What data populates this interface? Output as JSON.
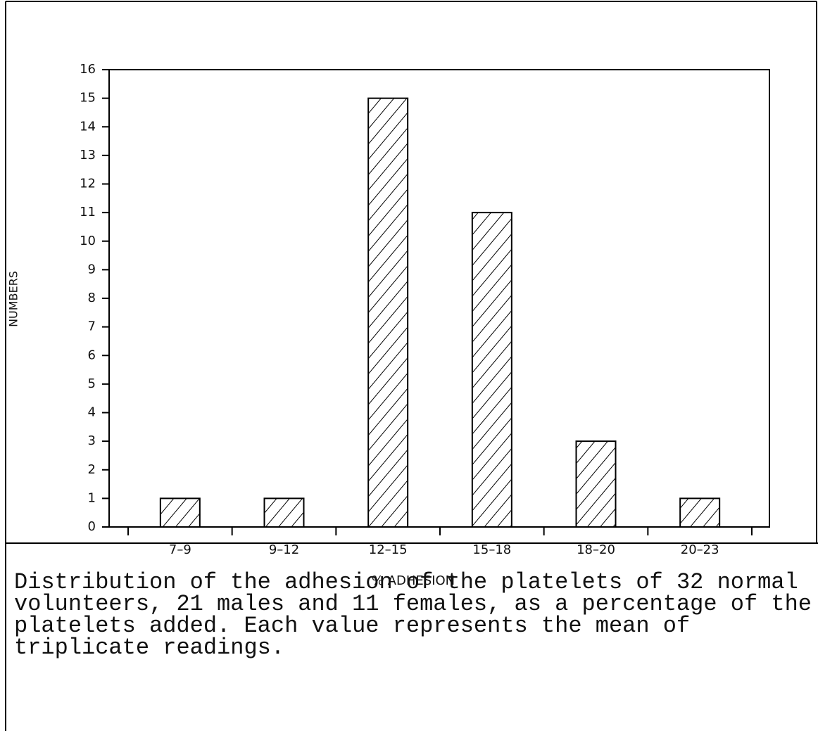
{
  "chart_data": {
    "type": "bar",
    "categories": [
      "7–9",
      "9–12",
      "12–15",
      "15–18",
      "18–20",
      "20–23"
    ],
    "values": [
      1,
      1,
      15,
      11,
      3,
      1
    ],
    "color": "#000000",
    "hatch": true,
    "ylim": [
      0,
      16
    ],
    "yticks": [
      0,
      1,
      2,
      3,
      4,
      5,
      6,
      7,
      8,
      9,
      10,
      11,
      12,
      13,
      14,
      15,
      16
    ],
    "x_label": "% ADHESION",
    "y_label": "NUMBERS",
    "grid": false
  },
  "caption": "Distribution of the adhesion of the platelets of 32 normal volunteers, 21 males and 11 females, as a percentage of the platelets added. Each value represents the mean of triplicate readings."
}
